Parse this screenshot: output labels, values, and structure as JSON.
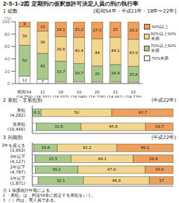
{
  "title": "2-5-1-2図 定期刑の仮釈放許可決定人員の刑の執行率",
  "chart_data": [
    {
      "type": "bar",
      "title": "1 総数",
      "subtitle": "[昭和54年・平成11年・18年〜22年]",
      "stacked": true,
      "data_labels": true,
      "y_label": "(%)",
      "categories": [
        "昭和54\n(14,758)",
        "11\n(16,301)",
        "18\n(16,507)",
        "19\n(16,048)",
        "20\n(16,226)",
        "21\n(14,981)",
        "22\n(14,738)"
      ],
      "series": [
        {
          "name": "70%未満",
          "color": "#ffffff",
          "values": [
            12.0,
            7.0,
            2.6,
            2.7,
            2.5,
            2.5,
            2.3
          ]
        },
        {
          "name": "70%以上80%未満",
          "color": "#a8c98a",
          "values": [
            50.0,
            42.0,
            33.7,
            29.7,
            26.0,
            28.4,
            25.6
          ]
        },
        {
          "name": "80%以上90%未満",
          "color": "#f3d68e",
          "values": [
            30.0,
            36.0,
            39.6,
            42.4,
            44.0,
            44.1,
            43.9
          ]
        },
        {
          "name": "90%以上",
          "color": "#ef9f5a",
          "values": [
            8.0,
            15.0,
            24.1,
            25.2,
            27.5,
            25.0,
            28.2
          ]
        }
      ],
      "ylim": [
        0,
        100
      ],
      "yticks": [
        0,
        20,
        40,
        60,
        80,
        100
      ]
    },
    {
      "type": "bar",
      "title": "2 累犯・非累犯別",
      "subtitle": "(平成22年)",
      "orientation": "horizontal",
      "stacked": true,
      "data_labels": true,
      "tick_labels": "y",
      "categories": [
        "累犯\n(4,282)",
        "非累犯\n(10,456)"
      ],
      "series": [
        {
          "name": "70%未満",
          "color": "#ffffff",
          "values": [
            0.2,
            2.9
          ]
        },
        {
          "name": "70%以上80%未満",
          "color": "#a8c98a",
          "values": [
            6.1,
            31.6
          ]
        },
        {
          "name": "80%以上90%未満",
          "color": "#f3d68e",
          "values": [
            50.0,
            45.8
          ]
        },
        {
          "name": "90%以上",
          "color": "#ef9f5a",
          "values": [
            43.7,
            19.7
          ]
        }
      ],
      "xlim": [
        0,
        100
      ]
    },
    {
      "type": "bar",
      "title": "3 刑期別",
      "subtitle": "(平成22年)",
      "orientation": "horizontal",
      "stacked": true,
      "data_labels": true,
      "tick_labels": "y",
      "categories": [
        "3年を超える\n(3,953)",
        "3年以下\n(4,127)",
        "2年以下\n(4,787)",
        "1年以下\n(1,871)"
      ],
      "series": [
        {
          "name": "70%未満",
          "color": "#ffffff",
          "values": [
            1.1,
            2.0,
            2.2,
            4.1
          ]
        },
        {
          "name": "70%以上80%未満",
          "color": "#a8c98a",
          "values": [
            16.6,
            25.5,
            30.1,
            32.1
          ]
        },
        {
          "name": "80%以上90%未満",
          "color": "#f3d68e",
          "values": [
            42.2,
            44.1,
            47.8,
            46.8
          ]
        },
        {
          "name": "90%以上",
          "color": "#ef9f5a",
          "values": [
            40.1,
            28.4,
            19.9,
            17.0
          ]
        }
      ],
      "xlim": [
        0,
        100
      ]
    }
  ],
  "notes": [
    "注 1 保護統計年報による。",
    "2 「累犯」は，刑法56条に規定する累犯をいう。",
    "3 （ ）内は，実人員である。"
  ]
}
